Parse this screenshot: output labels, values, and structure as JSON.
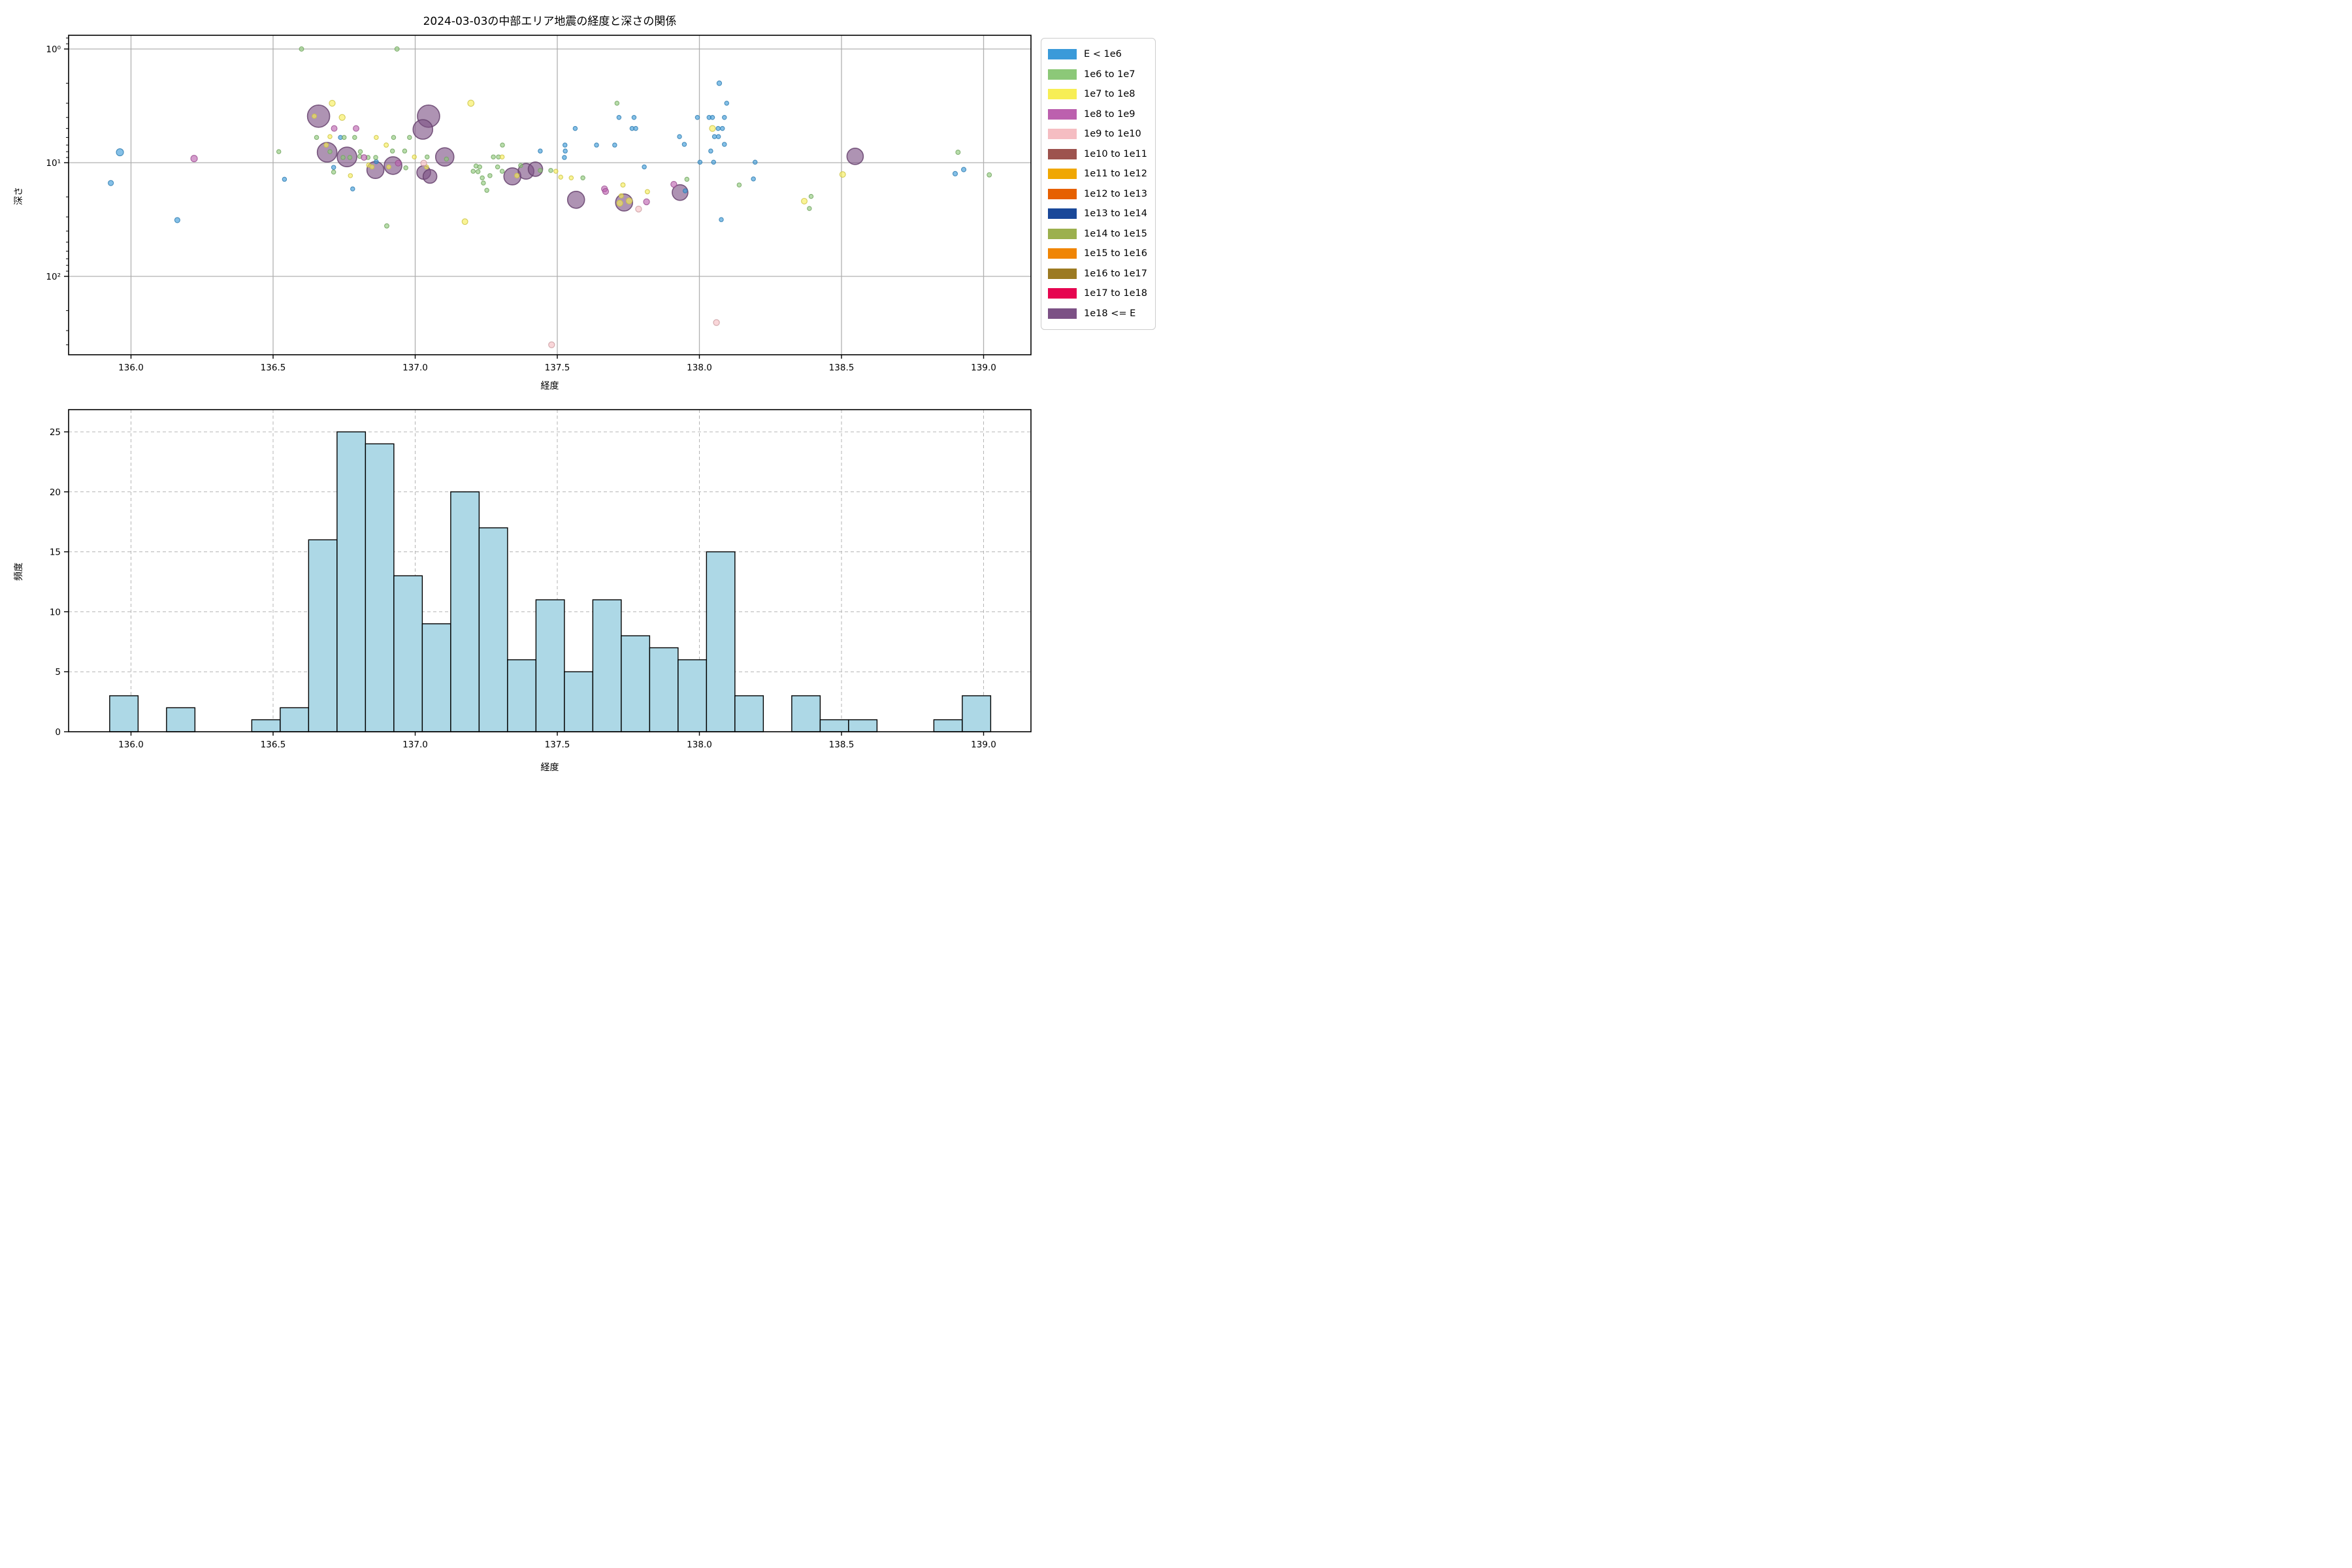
{
  "figure": {
    "title": "2024-03-03の中部エリア地震の経度と深さの関係",
    "background": "#ffffff"
  },
  "legend": {
    "entries": [
      {
        "label": "E < 1e6",
        "color": "#3A9AD9"
      },
      {
        "label": "1e6 to 1e7",
        "color": "#8CC878"
      },
      {
        "label": "1e7 to 1e8",
        "color": "#F7EE55"
      },
      {
        "label": "1e8 to 1e9",
        "color": "#BC60AE"
      },
      {
        "label": "1e9 to 1e10",
        "color": "#F5BDC2"
      },
      {
        "label": "1e10 to 1e11",
        "color": "#9D534E"
      },
      {
        "label": "1e11 to 1e12",
        "color": "#F0A702"
      },
      {
        "label": "1e12 to 1e13",
        "color": "#E66000"
      },
      {
        "label": "1e13 to 1e14",
        "color": "#1A4899"
      },
      {
        "label": "1e14 to 1e15",
        "color": "#9CB04E"
      },
      {
        "label": "1e15 to 1e16",
        "color": "#F08504"
      },
      {
        "label": "1e16 to 1e17",
        "color": "#9C7A22"
      },
      {
        "label": "1e17 to 1e18",
        "color": "#E60550"
      },
      {
        "label": "1e18 <= E",
        "color": "#7C5185"
      }
    ]
  },
  "chart_data": [
    {
      "type": "scatter",
      "title": "2024-03-03の中部エリア地震の経度と深さの関係",
      "xlabel": "経度",
      "ylabel": "深さ",
      "x_ticks": [
        136.0,
        136.5,
        137.0,
        137.5,
        138.0,
        138.5,
        139.0
      ],
      "xlim": [
        135.78,
        139.17
      ],
      "y_scale": "log-inverted",
      "y_decades": [
        1,
        10,
        100
      ],
      "y_tick_labels": [
        "10⁰",
        "10¹",
        "10²"
      ],
      "ylim_depth": [
        0.76,
        488
      ],
      "grid": "solid",
      "legend_position": "outside-right",
      "point_format": [
        "longitude",
        "depth_km",
        "category_index",
        "radius_px"
      ],
      "points": [
        [
          136.66,
          3.9,
          13,
          17
        ],
        [
          136.69,
          8.1,
          13,
          15
        ],
        [
          136.76,
          8.9,
          13,
          15
        ],
        [
          136.86,
          11.6,
          13,
          13
        ],
        [
          136.922,
          10.6,
          13,
          13.5
        ],
        [
          137.047,
          3.9,
          13,
          17
        ],
        [
          137.027,
          5.1,
          13,
          15
        ],
        [
          137.104,
          8.9,
          13,
          14
        ],
        [
          137.03,
          12.2,
          13,
          10.5
        ],
        [
          137.052,
          13.2,
          13,
          10.5
        ],
        [
          137.342,
          13.2,
          13,
          13
        ],
        [
          137.39,
          11.9,
          13,
          12
        ],
        [
          137.423,
          11.4,
          13,
          11
        ],
        [
          137.566,
          21.2,
          13,
          13
        ],
        [
          137.735,
          22.4,
          13,
          13
        ],
        [
          137.932,
          18.3,
          13,
          12
        ],
        [
          138.548,
          8.8,
          13,
          12.5
        ],
        [
          135.961,
          8.1,
          0,
          5.5
        ],
        [
          135.929,
          15.1,
          0,
          4
        ],
        [
          136.163,
          32,
          0,
          4
        ],
        [
          136.54,
          14.0,
          0,
          3.2
        ],
        [
          136.737,
          6.0,
          0,
          3.2
        ],
        [
          136.713,
          11.0,
          0,
          3.2
        ],
        [
          136.863,
          9.8,
          0,
          3.2
        ],
        [
          136.78,
          17.0,
          0,
          3.2
        ],
        [
          137.563,
          5.0,
          0,
          3.2
        ],
        [
          137.717,
          4.0,
          0,
          3.2
        ],
        [
          137.77,
          4.0,
          0,
          3.2
        ],
        [
          137.763,
          5.0,
          0,
          3.2
        ],
        [
          137.776,
          5.0,
          0,
          3.2
        ],
        [
          137.93,
          5.9,
          0,
          3.2
        ],
        [
          137.527,
          7.0,
          0,
          3.2
        ],
        [
          137.638,
          7.0,
          0,
          3.2
        ],
        [
          137.702,
          7.0,
          0,
          3.2
        ],
        [
          137.44,
          7.9,
          0,
          3.2
        ],
        [
          137.528,
          7.9,
          0,
          3.2
        ],
        [
          137.525,
          9.0,
          0,
          3.2
        ],
        [
          137.806,
          10.9,
          0,
          3.2
        ],
        [
          137.947,
          6.9,
          0,
          3.2
        ],
        [
          137.95,
          17.7,
          0,
          3.2
        ],
        [
          138.07,
          2.0,
          0,
          3.6
        ],
        [
          138.096,
          3.0,
          0,
          3.2
        ],
        [
          137.993,
          4.0,
          0,
          3.2
        ],
        [
          138.034,
          4.0,
          0,
          3.2
        ],
        [
          138.046,
          4.0,
          0,
          3.2
        ],
        [
          138.088,
          4.0,
          0,
          3.2
        ],
        [
          138.066,
          5.0,
          0,
          3.2
        ],
        [
          138.081,
          5.0,
          0,
          3.2
        ],
        [
          138.053,
          5.9,
          0,
          3.2
        ],
        [
          138.067,
          5.9,
          0,
          3.2
        ],
        [
          138.088,
          6.9,
          0,
          3.2
        ],
        [
          138.04,
          7.9,
          0,
          3.2
        ],
        [
          138.002,
          9.9,
          0,
          3.2
        ],
        [
          138.05,
          9.9,
          0,
          3.2
        ],
        [
          138.196,
          9.9,
          0,
          3.2
        ],
        [
          138.19,
          13.9,
          0,
          3.2
        ],
        [
          138.077,
          31.7,
          0,
          3.2
        ],
        [
          138.93,
          11.5,
          0,
          3.5
        ],
        [
          138.9,
          12.5,
          0,
          3.5
        ],
        [
          136.52,
          8.0,
          1,
          3.2
        ],
        [
          136.6,
          1.0,
          1,
          3.4
        ],
        [
          136.936,
          1.0,
          1,
          3.4
        ],
        [
          136.653,
          6.0,
          1,
          3.2
        ],
        [
          136.75,
          6.0,
          1,
          3.2
        ],
        [
          136.787,
          6.0,
          1,
          3.2
        ],
        [
          136.924,
          6.0,
          1,
          3.2
        ],
        [
          136.98,
          6.0,
          1,
          3.2
        ],
        [
          136.92,
          7.9,
          1,
          3.2
        ],
        [
          136.963,
          7.9,
          1,
          3.2
        ],
        [
          136.807,
          8.0,
          1,
          3.2
        ],
        [
          136.805,
          8.8,
          1,
          3.2
        ],
        [
          136.834,
          9.0,
          1,
          3.2
        ],
        [
          136.861,
          9.0,
          1,
          3.2
        ],
        [
          137.042,
          8.9,
          1,
          3.2
        ],
        [
          136.967,
          11.1,
          1,
          3.2
        ],
        [
          136.713,
          12.1,
          1,
          3.2
        ],
        [
          136.9,
          36,
          1,
          3.4
        ],
        [
          136.7,
          8.0,
          1,
          3.2
        ],
        [
          136.746,
          9.0,
          1,
          3.2
        ],
        [
          136.77,
          9.0,
          1,
          3.2
        ],
        [
          137.11,
          9.3,
          1,
          3.2
        ],
        [
          137.71,
          3.0,
          1,
          3.2
        ],
        [
          137.307,
          7.0,
          1,
          3.2
        ],
        [
          137.275,
          8.9,
          1,
          3.2
        ],
        [
          137.293,
          8.9,
          1,
          3.2
        ],
        [
          137.214,
          10.7,
          1,
          3.2
        ],
        [
          137.227,
          10.9,
          1,
          3.2
        ],
        [
          137.204,
          11.9,
          1,
          3.2
        ],
        [
          137.221,
          12.0,
          1,
          3.2
        ],
        [
          137.236,
          13.6,
          1,
          3.2
        ],
        [
          137.263,
          13.0,
          1,
          3.2
        ],
        [
          137.24,
          15.1,
          1,
          3.2
        ],
        [
          137.252,
          17.5,
          1,
          3.2
        ],
        [
          137.29,
          10.9,
          1,
          3.2
        ],
        [
          137.306,
          11.9,
          1,
          3.2
        ],
        [
          137.371,
          10.6,
          1,
          3.2
        ],
        [
          137.44,
          11.7,
          1,
          3.2
        ],
        [
          137.477,
          11.7,
          1,
          3.2
        ],
        [
          137.59,
          13.6,
          1,
          3.2
        ],
        [
          137.956,
          14.0,
          1,
          3.2
        ],
        [
          138.14,
          15.7,
          1,
          3.2
        ],
        [
          138.393,
          19.8,
          1,
          3.2
        ],
        [
          138.387,
          25.3,
          1,
          3.2
        ],
        [
          138.91,
          8.1,
          1,
          3.4
        ],
        [
          139.02,
          12.8,
          1,
          3.4
        ],
        [
          136.645,
          3.9,
          2,
          3.4
        ],
        [
          136.708,
          3.0,
          2,
          4.6
        ],
        [
          136.743,
          4.0,
          2,
          4.6
        ],
        [
          136.7,
          5.9,
          2,
          3.2
        ],
        [
          136.863,
          6.0,
          2,
          3.2
        ],
        [
          136.898,
          7.0,
          2,
          3.4
        ],
        [
          136.687,
          7.0,
          2,
          3.4
        ],
        [
          136.997,
          8.9,
          2,
          3.2
        ],
        [
          136.836,
          10.5,
          2,
          3.2
        ],
        [
          136.848,
          10.9,
          2,
          3.2
        ],
        [
          136.907,
          10.9,
          2,
          3.2
        ],
        [
          136.772,
          13.0,
          2,
          3.2
        ],
        [
          137.04,
          10.9,
          2,
          3.2
        ],
        [
          137.196,
          3.0,
          2,
          4.8
        ],
        [
          137.175,
          33,
          2,
          4.4
        ],
        [
          137.306,
          8.9,
          2,
          3.2
        ],
        [
          137.358,
          13.0,
          2,
          3.6
        ],
        [
          137.495,
          11.9,
          2,
          3.2
        ],
        [
          137.512,
          13.4,
          2,
          3.2
        ],
        [
          137.549,
          13.6,
          2,
          3.2
        ],
        [
          137.731,
          15.7,
          2,
          3.4
        ],
        [
          137.725,
          19.6,
          2,
          3.4
        ],
        [
          137.72,
          22.7,
          2,
          4.6
        ],
        [
          137.753,
          21.7,
          2,
          4.6
        ],
        [
          137.817,
          18.0,
          2,
          3.4
        ],
        [
          138.046,
          5.0,
          2,
          4.6
        ],
        [
          138.369,
          21.8,
          2,
          4.4
        ],
        [
          138.504,
          12.7,
          2,
          4.4
        ],
        [
          136.222,
          9.2,
          3,
          5
        ],
        [
          136.715,
          5.0,
          3,
          4.4
        ],
        [
          136.792,
          5.0,
          3,
          4.4
        ],
        [
          136.82,
          9.0,
          3,
          4.4
        ],
        [
          136.94,
          10.1,
          3,
          4.4
        ],
        [
          137.666,
          17.0,
          3,
          4.6
        ],
        [
          137.67,
          17.9,
          3,
          4.6
        ],
        [
          137.814,
          22.1,
          3,
          4.6
        ],
        [
          137.91,
          15.5,
          3,
          4.6
        ],
        [
          137.03,
          10.1,
          4,
          4.6
        ],
        [
          137.786,
          25.6,
          4,
          4.6
        ],
        [
          137.48,
          400,
          4,
          4.6
        ],
        [
          138.06,
          255,
          4,
          4.6
        ]
      ]
    },
    {
      "type": "bar",
      "subtype": "histogram",
      "xlabel": "経度",
      "ylabel": "頻度",
      "x_ticks": [
        136.0,
        136.5,
        137.0,
        137.5,
        138.0,
        138.5,
        139.0
      ],
      "y_ticks": [
        0,
        5,
        10,
        15,
        20,
        25
      ],
      "ylim": [
        0,
        26.8
      ],
      "grid": "dashed",
      "bar_color": "#ADD8E6",
      "bar_edge_color": "#000000",
      "bin_start": 135.925,
      "bin_width": 0.1,
      "counts": [
        3,
        0,
        2,
        0,
        0,
        1,
        2,
        16,
        25,
        24,
        13,
        9,
        20,
        17,
        6,
        11,
        5,
        11,
        8,
        7,
        6,
        15,
        3,
        0,
        3,
        1,
        1,
        0,
        0,
        1,
        3
      ]
    }
  ]
}
